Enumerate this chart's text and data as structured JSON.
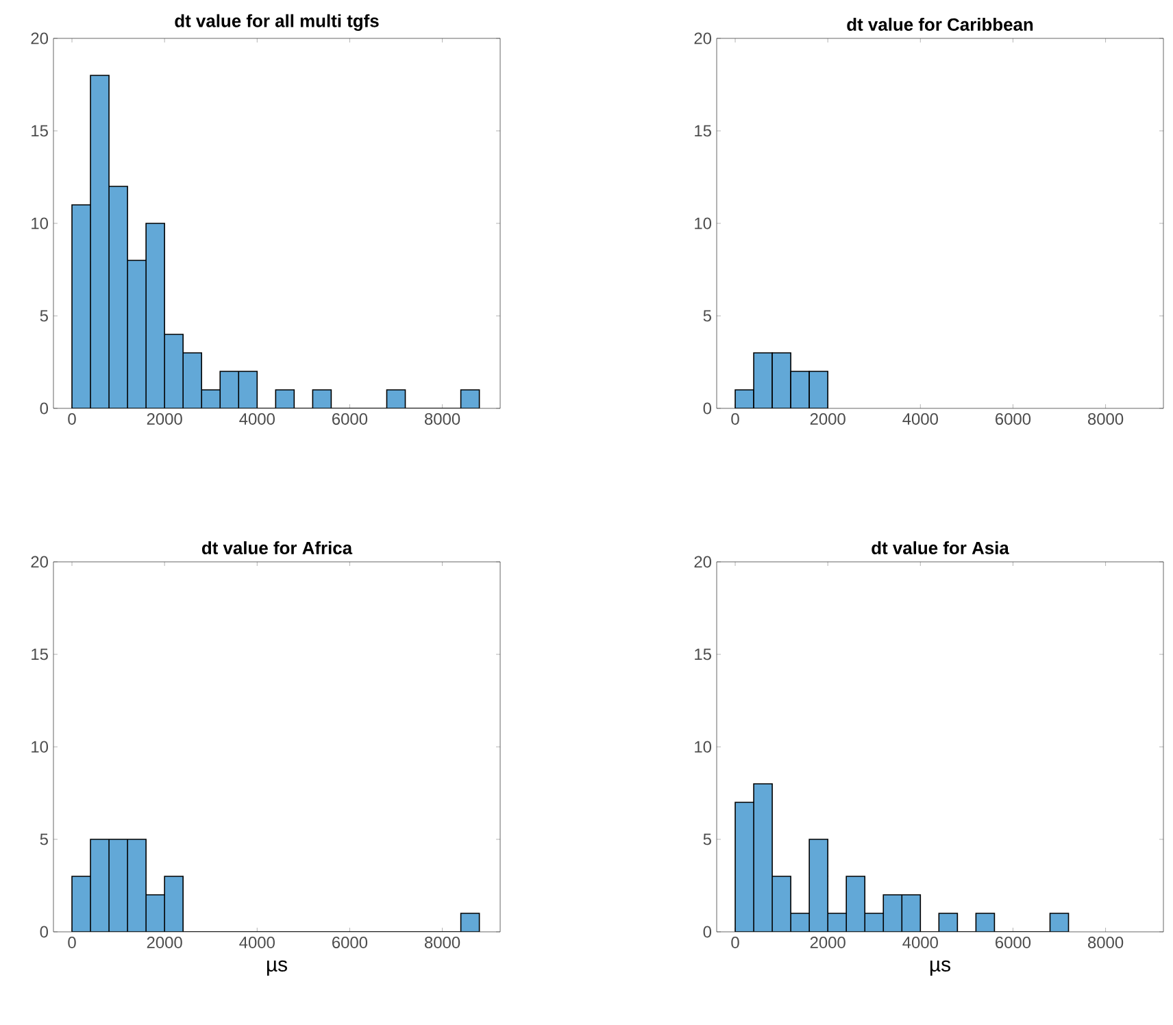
{
  "chart_data": [
    {
      "type": "histogram",
      "title": "dt value for all multi tgfs",
      "color": "#62a8d7",
      "bins": [
        0,
        400,
        800,
        1200,
        1600,
        2000,
        2400,
        2800,
        3200,
        3600,
        4000,
        4400,
        4800,
        5200,
        5600,
        6000,
        6400,
        6800,
        7200,
        7600,
        8000,
        8400,
        8800
      ],
      "values": [
        11,
        18,
        12,
        8,
        10,
        4,
        3,
        1,
        2,
        2,
        0,
        1,
        0,
        1,
        0,
        0,
        0,
        1,
        0,
        0,
        0,
        1
      ],
      "xlim": [
        -400,
        9250
      ],
      "ylim": [
        0,
        20
      ],
      "xticks": [
        0,
        2000,
        4000,
        6000,
        8000
      ],
      "yticks": [
        0,
        5,
        10,
        15,
        20
      ]
    },
    {
      "type": "histogram",
      "title": "dt value for Caribbean",
      "color": "#62a8d7",
      "bins": [
        0,
        400,
        800,
        1200,
        1600,
        2000
      ],
      "values": [
        1,
        3,
        3,
        2,
        2
      ],
      "xlim": [
        -400,
        9250
      ],
      "ylim": [
        0,
        20
      ],
      "xticks": [
        0,
        2000,
        4000,
        6000,
        8000
      ],
      "yticks": [
        0,
        5,
        10,
        15,
        20
      ]
    },
    {
      "type": "histogram",
      "title": "dt value for Africa",
      "xlabel": "µs",
      "color": "#62a8d7",
      "bins": [
        0,
        400,
        800,
        1200,
        1600,
        2000,
        2400,
        2800,
        3200,
        3600,
        4000,
        4400,
        4800,
        5200,
        5600,
        6000,
        6400,
        6800,
        7200,
        7600,
        8000,
        8400,
        8800
      ],
      "values": [
        3,
        5,
        5,
        5,
        2,
        3,
        0,
        0,
        0,
        0,
        0,
        0,
        0,
        0,
        0,
        0,
        0,
        0,
        0,
        0,
        0,
        1
      ],
      "xlim": [
        -400,
        9250
      ],
      "ylim": [
        0,
        20
      ],
      "xticks": [
        0,
        2000,
        4000,
        6000,
        8000
      ],
      "yticks": [
        0,
        5,
        10,
        15,
        20
      ]
    },
    {
      "type": "histogram",
      "title": "dt value for Asia",
      "xlabel": "µs",
      "color": "#62a8d7",
      "bins": [
        0,
        400,
        800,
        1200,
        1600,
        2000,
        2400,
        2800,
        3200,
        3600,
        4000,
        4400,
        4800,
        5200,
        5600,
        6000,
        6400,
        6800,
        7200
      ],
      "values": [
        7,
        8,
        3,
        1,
        5,
        1,
        3,
        1,
        2,
        2,
        0,
        1,
        0,
        1,
        0,
        0,
        0,
        1
      ],
      "xlim": [
        -400,
        9250
      ],
      "ylim": [
        0,
        20
      ],
      "xticks": [
        0,
        2000,
        4000,
        6000,
        8000
      ],
      "yticks": [
        0,
        5,
        10,
        15,
        20
      ]
    }
  ]
}
